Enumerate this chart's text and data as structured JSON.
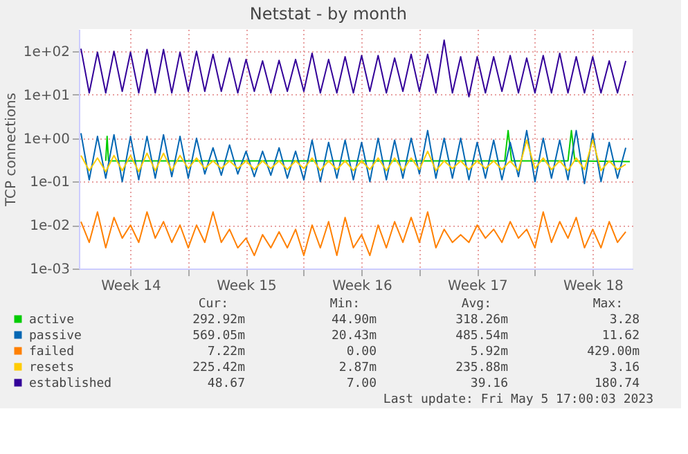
{
  "chart_data": {
    "type": "line",
    "title": "Netstat - by month",
    "ylabel": "TCP connections",
    "log": true,
    "grid": true,
    "legend": "bottom",
    "xlim": [
      "2023-04-03T09:00",
      "2023-05-06T22:00"
    ],
    "xticks": [
      {
        "value": "2023-04-06T12:00",
        "label": "Week 14"
      },
      {
        "value": "2023-04-10T00:00",
        "label": null
      },
      {
        "value": "2023-04-13T12:00",
        "label": "Week 15"
      },
      {
        "value": "2023-04-17T00:00",
        "label": null
      },
      {
        "value": "2023-04-20T12:00",
        "label": "Week 16"
      },
      {
        "value": "2023-04-24T00:00",
        "label": null
      },
      {
        "value": "2023-04-27T12:00",
        "label": "Week 17"
      },
      {
        "value": "2023-05-01T00:00",
        "label": null
      },
      {
        "value": "2023-05-04T12:00",
        "label": "Week 18"
      }
    ],
    "ylim": [
      0.001,
      325
    ],
    "yticks": [
      {
        "value": 0.001,
        "label": "1e-03"
      },
      {
        "value": 0.01,
        "label": "1e-02"
      },
      {
        "value": 0.1,
        "label": "1e-01"
      },
      {
        "value": 1,
        "label": "1e+00"
      },
      {
        "value": 10,
        "label": "1e+01"
      },
      {
        "value": 100,
        "label": "1e+02"
      }
    ],
    "x": [
      "2023-04-03T12:00",
      "2023-04-04T00:00",
      "2023-04-04T12:00",
      "2023-04-05T00:00",
      "2023-04-05T12:00",
      "2023-04-06T00:00",
      "2023-04-06T12:00",
      "2023-04-07T00:00",
      "2023-04-07T12:00",
      "2023-04-08T00:00",
      "2023-04-08T12:00",
      "2023-04-09T00:00",
      "2023-04-09T12:00",
      "2023-04-10T00:00",
      "2023-04-10T12:00",
      "2023-04-11T00:00",
      "2023-04-11T12:00",
      "2023-04-12T00:00",
      "2023-04-12T12:00",
      "2023-04-13T00:00",
      "2023-04-13T12:00",
      "2023-04-14T00:00",
      "2023-04-14T12:00",
      "2023-04-15T00:00",
      "2023-04-15T12:00",
      "2023-04-16T00:00",
      "2023-04-16T12:00",
      "2023-04-17T00:00",
      "2023-04-17T12:00",
      "2023-04-18T00:00",
      "2023-04-18T12:00",
      "2023-04-19T00:00",
      "2023-04-19T12:00",
      "2023-04-20T00:00",
      "2023-04-20T12:00",
      "2023-04-21T00:00",
      "2023-04-21T12:00",
      "2023-04-22T00:00",
      "2023-04-22T12:00",
      "2023-04-23T00:00",
      "2023-04-23T12:00",
      "2023-04-24T00:00",
      "2023-04-24T12:00",
      "2023-04-25T00:00",
      "2023-04-25T12:00",
      "2023-04-26T00:00",
      "2023-04-26T12:00",
      "2023-04-27T00:00",
      "2023-04-27T12:00",
      "2023-04-28T00:00",
      "2023-04-28T12:00",
      "2023-04-29T00:00",
      "2023-04-29T12:00",
      "2023-04-30T00:00",
      "2023-04-30T12:00",
      "2023-05-01T00:00",
      "2023-05-01T12:00",
      "2023-05-02T00:00",
      "2023-05-02T12:00",
      "2023-05-03T00:00",
      "2023-05-03T12:00",
      "2023-05-04T00:00",
      "2023-05-04T12:00",
      "2023-05-05T00:00",
      "2023-05-05T12:00",
      "2023-05-06T00:00",
      "2023-05-06T12:00"
    ],
    "series": [
      {
        "name": "active",
        "color": "#00cc00",
        "x": [
          "2023-04-05T00:00",
          "2023-04-05T02:00",
          "2023-04-05T04:00",
          "2023-04-29T04:00",
          "2023-04-29T09:00",
          "2023-04-29T14:00",
          "2023-05-03T00:00",
          "2023-05-03T05:00",
          "2023-05-03T10:00",
          "2023-05-06T18:00"
        ],
        "values": [
          0.3,
          1.1,
          0.3,
          0.3,
          1.5,
          0.3,
          0.3,
          1.5,
          0.3,
          0.29
        ]
      },
      {
        "name": "passive",
        "color": "#0066b3",
        "values": [
          1.3,
          0.11,
          1.1,
          0.12,
          1.2,
          0.1,
          1.1,
          0.11,
          1.1,
          0.12,
          1.2,
          0.13,
          1.1,
          0.12,
          1.0,
          0.15,
          0.6,
          0.14,
          0.7,
          0.15,
          0.5,
          0.13,
          0.5,
          0.14,
          0.6,
          0.12,
          0.5,
          0.11,
          0.9,
          0.1,
          0.8,
          0.12,
          0.9,
          0.11,
          0.8,
          0.1,
          1.0,
          0.11,
          0.9,
          0.12,
          1.0,
          0.15,
          1.5,
          0.12,
          1.0,
          0.12,
          1.0,
          0.11,
          0.8,
          0.12,
          0.9,
          0.11,
          0.8,
          0.13,
          1.5,
          0.1,
          1.0,
          0.12,
          0.9,
          0.11,
          1.5,
          0.09,
          1.3,
          0.1,
          0.8,
          0.12,
          0.6
        ]
      },
      {
        "name": "failed",
        "color": "#ff8000",
        "values": [
          0.012,
          0.004,
          0.02,
          0.003,
          0.015,
          0.005,
          0.01,
          0.004,
          0.02,
          0.005,
          0.012,
          0.004,
          0.01,
          0.003,
          0.01,
          0.004,
          0.02,
          0.004,
          0.008,
          0.003,
          0.005,
          0.002,
          0.006,
          0.003,
          0.007,
          0.003,
          0.008,
          0.002,
          0.01,
          0.003,
          0.012,
          0.002,
          0.015,
          0.003,
          0.006,
          0.002,
          0.01,
          0.003,
          0.012,
          0.004,
          0.015,
          0.004,
          0.02,
          0.003,
          0.008,
          0.004,
          0.006,
          0.004,
          0.01,
          0.005,
          0.008,
          0.004,
          0.012,
          0.005,
          0.008,
          0.003,
          0.02,
          0.004,
          0.012,
          0.005,
          0.015,
          0.003,
          0.008,
          0.003,
          0.012,
          0.004,
          0.007
        ]
      },
      {
        "name": "resets",
        "color": "#ffcc00",
        "values": [
          0.4,
          0.18,
          0.35,
          0.17,
          0.4,
          0.18,
          0.4,
          0.17,
          0.45,
          0.18,
          0.45,
          0.18,
          0.4,
          0.2,
          0.35,
          0.2,
          0.3,
          0.2,
          0.3,
          0.2,
          0.3,
          0.19,
          0.3,
          0.2,
          0.3,
          0.19,
          0.3,
          0.2,
          0.35,
          0.18,
          0.3,
          0.19,
          0.3,
          0.18,
          0.3,
          0.19,
          0.35,
          0.18,
          0.35,
          0.18,
          0.35,
          0.19,
          0.5,
          0.18,
          0.3,
          0.2,
          0.3,
          0.19,
          0.3,
          0.2,
          0.3,
          0.19,
          0.3,
          0.18,
          0.9,
          0.2,
          0.35,
          0.19,
          0.3,
          0.18,
          0.35,
          0.19,
          0.9,
          0.18,
          0.3,
          0.19,
          0.25
        ]
      },
      {
        "name": "established",
        "color": "#330099",
        "values": [
          115,
          11,
          95,
          11,
          100,
          12,
          95,
          11,
          110,
          11,
          110,
          11,
          95,
          12,
          100,
          12,
          85,
          12,
          70,
          11,
          65,
          12,
          60,
          11,
          62,
          12,
          65,
          12,
          90,
          11,
          65,
          11,
          75,
          11,
          80,
          12,
          80,
          11,
          70,
          12,
          85,
          12,
          85,
          11,
          180,
          11,
          75,
          9,
          75,
          11,
          75,
          12,
          80,
          11,
          70,
          11,
          80,
          11,
          90,
          11,
          75,
          11,
          75,
          11,
          60,
          11,
          60
        ]
      }
    ],
    "annotations": [
      "Cur:",
      "Min:",
      "Avg:",
      "Max:",
      "292.92m",
      "44.90m",
      "318.26m",
      "3.28",
      "569.05m",
      "20.43m",
      "485.54m",
      "11.62",
      "7.22m",
      "0.00",
      "5.92m",
      "429.00m",
      "225.42m",
      "2.87m",
      "235.88m",
      "3.16",
      "48.67",
      "7.00",
      "39.16",
      "180.74",
      "Last update: Fri May  5 17:00:03 2023"
    ]
  }
}
